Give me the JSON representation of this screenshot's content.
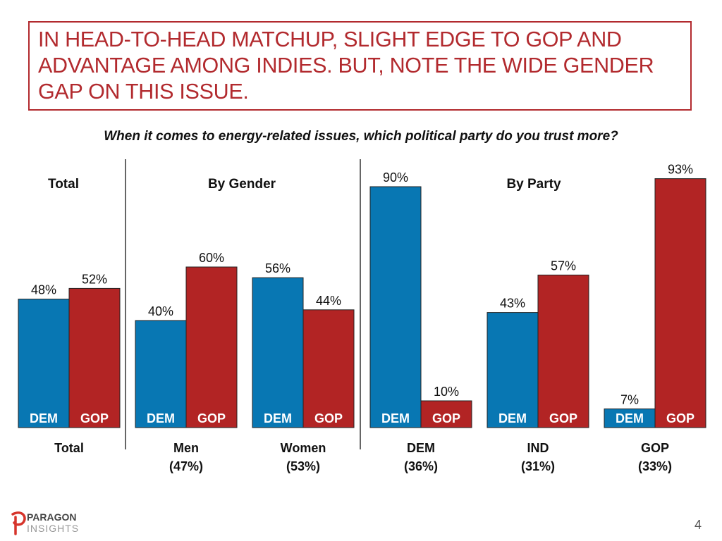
{
  "slide": {
    "headline": "IN HEAD-TO-HEAD MATCHUP, SLIGHT EDGE TO GOP AND ADVANTAGE AMONG INDIES. BUT, NOTE THE WIDE GENDER GAP ON THIS ISSUE.",
    "question": "When it comes to energy-related issues, which political party do you trust more?",
    "page_number": "4",
    "logo": {
      "line1": "PARAGON",
      "line2": "INSIGHTS"
    }
  },
  "chart_data": {
    "type": "bar",
    "title": "When it comes to energy-related issues, which political party do you trust more?",
    "xlabel": "",
    "ylabel": "",
    "ylim": [
      0,
      100
    ],
    "grid": false,
    "legend": "in-bar labels",
    "sections": [
      "Total",
      "By Gender",
      "By Party"
    ],
    "categories": [
      "Total",
      "Men",
      "Women",
      "DEM",
      "IND",
      "GOP"
    ],
    "category_sublabels": [
      "",
      "(47%)",
      "(53%)",
      "(36%)",
      "(31%)",
      "(33%)"
    ],
    "category_section": [
      0,
      1,
      1,
      2,
      2,
      2
    ],
    "series": [
      {
        "name": "DEM",
        "color": "#0877b3",
        "values": [
          48,
          40,
          56,
          90,
          43,
          7
        ]
      },
      {
        "name": "GOP",
        "color": "#b22424",
        "values": [
          52,
          60,
          44,
          10,
          57,
          93
        ]
      }
    ],
    "value_suffix": "%"
  }
}
